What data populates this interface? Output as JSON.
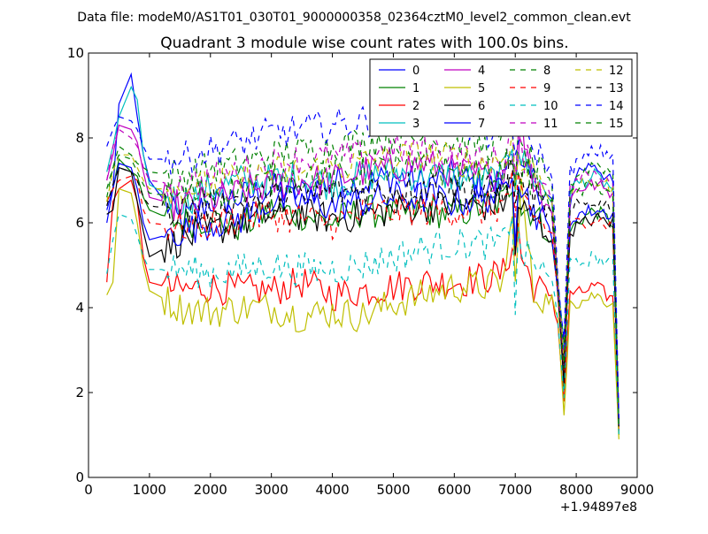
{
  "chart_data": {
    "type": "line",
    "supertitle": "Data file: modeM0/AS1T01_030T01_9000000358_02364cztM0_level2_common_clean.evt",
    "title": "Quadrant 3 module wise count rates with 100.0s bins.",
    "xlabel": "",
    "ylabel": "",
    "x_offset_label": "+1.94897e8",
    "xlim": [
      0,
      9000
    ],
    "ylim": [
      0,
      10
    ],
    "xticks": [
      0,
      1000,
      2000,
      3000,
      4000,
      5000,
      6000,
      7000,
      8000,
      9000
    ],
    "yticks": [
      0,
      2,
      4,
      6,
      8,
      10
    ],
    "grid": false,
    "legend": {
      "placement": "top-right",
      "columns": 4
    },
    "key_x": [
      300,
      400,
      500,
      700,
      800,
      900,
      1000,
      1500,
      2000,
      2500,
      3000,
      3500,
      4000,
      4500,
      5000,
      5500,
      6000,
      6500,
      6800,
      6950,
      7000,
      7050,
      7100,
      7300,
      7600,
      7700,
      7800,
      7900,
      8000,
      8300,
      8600,
      8700
    ],
    "series": [
      {
        "name": "0",
        "color": "#0000ff",
        "dash": "solid",
        "values": [
          6.0,
          6.8,
          8.8,
          9.5,
          8.5,
          7.6,
          7.0,
          6.0,
          6.5,
          6.6,
          6.8,
          6.7,
          7.0,
          6.9,
          7.1,
          6.9,
          7.1,
          6.8,
          7.0,
          8.0,
          6.9,
          7.5,
          7.1,
          7.0,
          6.5,
          4.6,
          3.0,
          6.5,
          7.2,
          7.4,
          6.9,
          1.2
        ]
      },
      {
        "name": "1",
        "color": "#008000",
        "dash": "solid",
        "values": [
          6.5,
          6.8,
          7.5,
          7.2,
          7.1,
          6.6,
          6.3,
          6.0,
          6.1,
          5.9,
          6.3,
          6.2,
          6.0,
          6.3,
          6.2,
          6.3,
          6.2,
          6.4,
          6.5,
          7.0,
          5.6,
          7.0,
          6.3,
          6.3,
          5.5,
          4.4,
          2.2,
          5.8,
          6.0,
          6.3,
          6.0,
          1.0
        ]
      },
      {
        "name": "2",
        "color": "#ff0000",
        "dash": "solid",
        "values": [
          4.6,
          6.5,
          6.8,
          7.0,
          6.5,
          5.2,
          4.6,
          4.4,
          4.5,
          4.4,
          4.4,
          4.6,
          4.3,
          4.4,
          4.5,
          4.6,
          4.6,
          4.7,
          4.8,
          5.5,
          5.1,
          6.0,
          5.2,
          4.5,
          4.3,
          3.6,
          1.8,
          4.4,
          4.3,
          4.5,
          4.2,
          1.1
        ]
      },
      {
        "name": "3",
        "color": "#00bfbf",
        "dash": "solid",
        "values": [
          7.2,
          7.8,
          8.5,
          9.2,
          8.9,
          7.6,
          6.9,
          6.5,
          6.8,
          7.0,
          7.0,
          7.1,
          6.9,
          7.1,
          7.2,
          7.1,
          7.1,
          7.0,
          7.1,
          8.0,
          7.0,
          7.9,
          7.5,
          7.1,
          6.5,
          4.5,
          3.0,
          6.8,
          6.9,
          7.1,
          6.8,
          1.2
        ]
      },
      {
        "name": "4",
        "color": "#bf00bf",
        "dash": "solid",
        "values": [
          7.0,
          7.6,
          8.3,
          8.2,
          7.9,
          7.2,
          6.6,
          6.4,
          6.5,
          6.7,
          6.9,
          7.0,
          7.0,
          7.2,
          7.3,
          7.4,
          7.2,
          7.1,
          7.2,
          7.8,
          6.8,
          7.7,
          8.4,
          7.0,
          6.3,
          4.2,
          2.6,
          6.5,
          6.8,
          6.9,
          6.7,
          1.2
        ]
      },
      {
        "name": "5",
        "color": "#bfbf00",
        "dash": "solid",
        "values": [
          4.3,
          4.6,
          6.8,
          6.7,
          6.0,
          5.0,
          4.4,
          4.0,
          3.9,
          4.0,
          4.0,
          3.8,
          3.9,
          3.8,
          4.1,
          4.3,
          4.5,
          4.5,
          4.6,
          6.0,
          5.0,
          5.6,
          6.8,
          4.3,
          4.2,
          3.6,
          1.5,
          4.3,
          4.1,
          4.3,
          4.1,
          0.9
        ]
      },
      {
        "name": "6",
        "color": "#000000",
        "dash": "solid",
        "values": [
          6.2,
          6.3,
          7.3,
          7.2,
          6.5,
          5.8,
          5.2,
          5.6,
          5.8,
          6.0,
          6.2,
          6.2,
          6.1,
          6.2,
          6.3,
          6.4,
          6.4,
          6.4,
          6.5,
          7.0,
          5.2,
          6.5,
          6.3,
          6.1,
          5.6,
          4.3,
          2.4,
          5.8,
          5.9,
          6.1,
          6.0,
          1.2
        ]
      },
      {
        "name": "7",
        "color": "#0000ff",
        "dash": "solid",
        "values": [
          6.3,
          6.8,
          7.4,
          7.3,
          6.8,
          6.0,
          5.6,
          5.8,
          6.0,
          6.1,
          6.5,
          6.5,
          6.4,
          6.5,
          6.6,
          6.6,
          6.5,
          6.6,
          6.7,
          7.4,
          5.8,
          7.2,
          6.9,
          6.3,
          5.8,
          4.4,
          2.7,
          6.0,
          6.2,
          6.3,
          6.2,
          1.2
        ]
      },
      {
        "name": "8",
        "color": "#008000",
        "dash": "dash",
        "values": [
          6.6,
          7.3,
          7.8,
          7.6,
          7.4,
          7.3,
          7.2,
          7.1,
          7.3,
          7.4,
          7.6,
          7.7,
          7.8,
          7.9,
          8.0,
          8.0,
          7.9,
          7.8,
          7.9,
          8.4,
          7.1,
          7.9,
          7.6,
          7.4,
          6.8,
          4.6,
          3.0,
          6.9,
          7.1,
          7.4,
          7.2,
          1.3
        ]
      },
      {
        "name": "9",
        "color": "#ff0000",
        "dash": "dash",
        "values": [
          6.5,
          6.8,
          7.0,
          7.1,
          7.0,
          6.3,
          6.0,
          5.9,
          6.0,
          6.1,
          6.2,
          6.1,
          6.0,
          6.2,
          6.3,
          6.3,
          6.3,
          6.3,
          6.4,
          7.0,
          5.8,
          6.8,
          6.6,
          6.2,
          5.7,
          4.3,
          2.4,
          5.9,
          6.0,
          6.1,
          5.9,
          1.1
        ]
      },
      {
        "name": "10",
        "color": "#00bfbf",
        "dash": "dash",
        "values": [
          4.8,
          5.6,
          6.2,
          6.1,
          5.7,
          5.2,
          4.9,
          4.9,
          4.8,
          4.9,
          5.0,
          4.9,
          4.9,
          5.0,
          5.2,
          5.4,
          5.5,
          5.5,
          5.5,
          6.3,
          4.0,
          5.6,
          5.3,
          5.1,
          4.6,
          3.8,
          2.0,
          5.0,
          5.0,
          5.2,
          5.0,
          1.0
        ]
      },
      {
        "name": "11",
        "color": "#bf00bf",
        "dash": "dash",
        "values": [
          7.0,
          7.8,
          8.2,
          8.0,
          7.8,
          7.3,
          7.0,
          6.9,
          7.0,
          7.2,
          7.4,
          7.5,
          7.5,
          7.6,
          7.7,
          7.8,
          7.6,
          7.4,
          7.5,
          8.2,
          7.0,
          7.8,
          7.6,
          7.3,
          6.6,
          4.6,
          2.9,
          6.8,
          7.0,
          7.2,
          7.0,
          1.3
        ]
      },
      {
        "name": "12",
        "color": "#bfbf00",
        "dash": "dash",
        "values": [
          6.5,
          7.2,
          7.6,
          7.6,
          7.3,
          7.0,
          6.8,
          6.8,
          6.9,
          7.0,
          7.2,
          7.2,
          7.3,
          7.4,
          7.5,
          7.6,
          7.5,
          7.4,
          7.5,
          8.0,
          6.8,
          7.6,
          7.3,
          7.2,
          6.6,
          4.5,
          2.8,
          6.7,
          6.8,
          7.0,
          6.8,
          1.2
        ]
      },
      {
        "name": "13",
        "color": "#000000",
        "dash": "dash",
        "values": [
          6.4,
          6.9,
          7.3,
          7.2,
          7.0,
          6.6,
          6.4,
          6.3,
          6.4,
          6.5,
          6.6,
          6.6,
          6.7,
          6.8,
          6.8,
          6.9,
          6.8,
          6.7,
          6.8,
          7.4,
          6.2,
          7.1,
          6.9,
          6.7,
          6.1,
          4.4,
          2.6,
          6.2,
          6.4,
          6.5,
          6.4,
          1.2
        ]
      },
      {
        "name": "14",
        "color": "#0000ff",
        "dash": "dash",
        "values": [
          7.8,
          8.2,
          8.5,
          8.4,
          8.2,
          7.8,
          7.5,
          7.5,
          7.7,
          7.9,
          8.1,
          8.2,
          8.3,
          8.4,
          8.5,
          8.6,
          8.4,
          8.1,
          8.2,
          8.3,
          7.5,
          8.2,
          8.0,
          7.8,
          7.1,
          4.8,
          3.2,
          7.2,
          7.4,
          7.7,
          7.6,
          1.4
        ]
      },
      {
        "name": "15",
        "color": "#008000",
        "dash": "dash",
        "values": [
          6.8,
          7.3,
          7.6,
          7.5,
          7.2,
          6.9,
          6.7,
          6.6,
          6.7,
          6.8,
          7.0,
          7.1,
          7.1,
          7.2,
          7.3,
          7.3,
          7.2,
          7.1,
          7.2,
          7.8,
          6.7,
          7.5,
          7.2,
          7.0,
          6.4,
          4.5,
          2.7,
          6.6,
          6.7,
          6.9,
          6.7,
          1.2
        ]
      }
    ]
  }
}
